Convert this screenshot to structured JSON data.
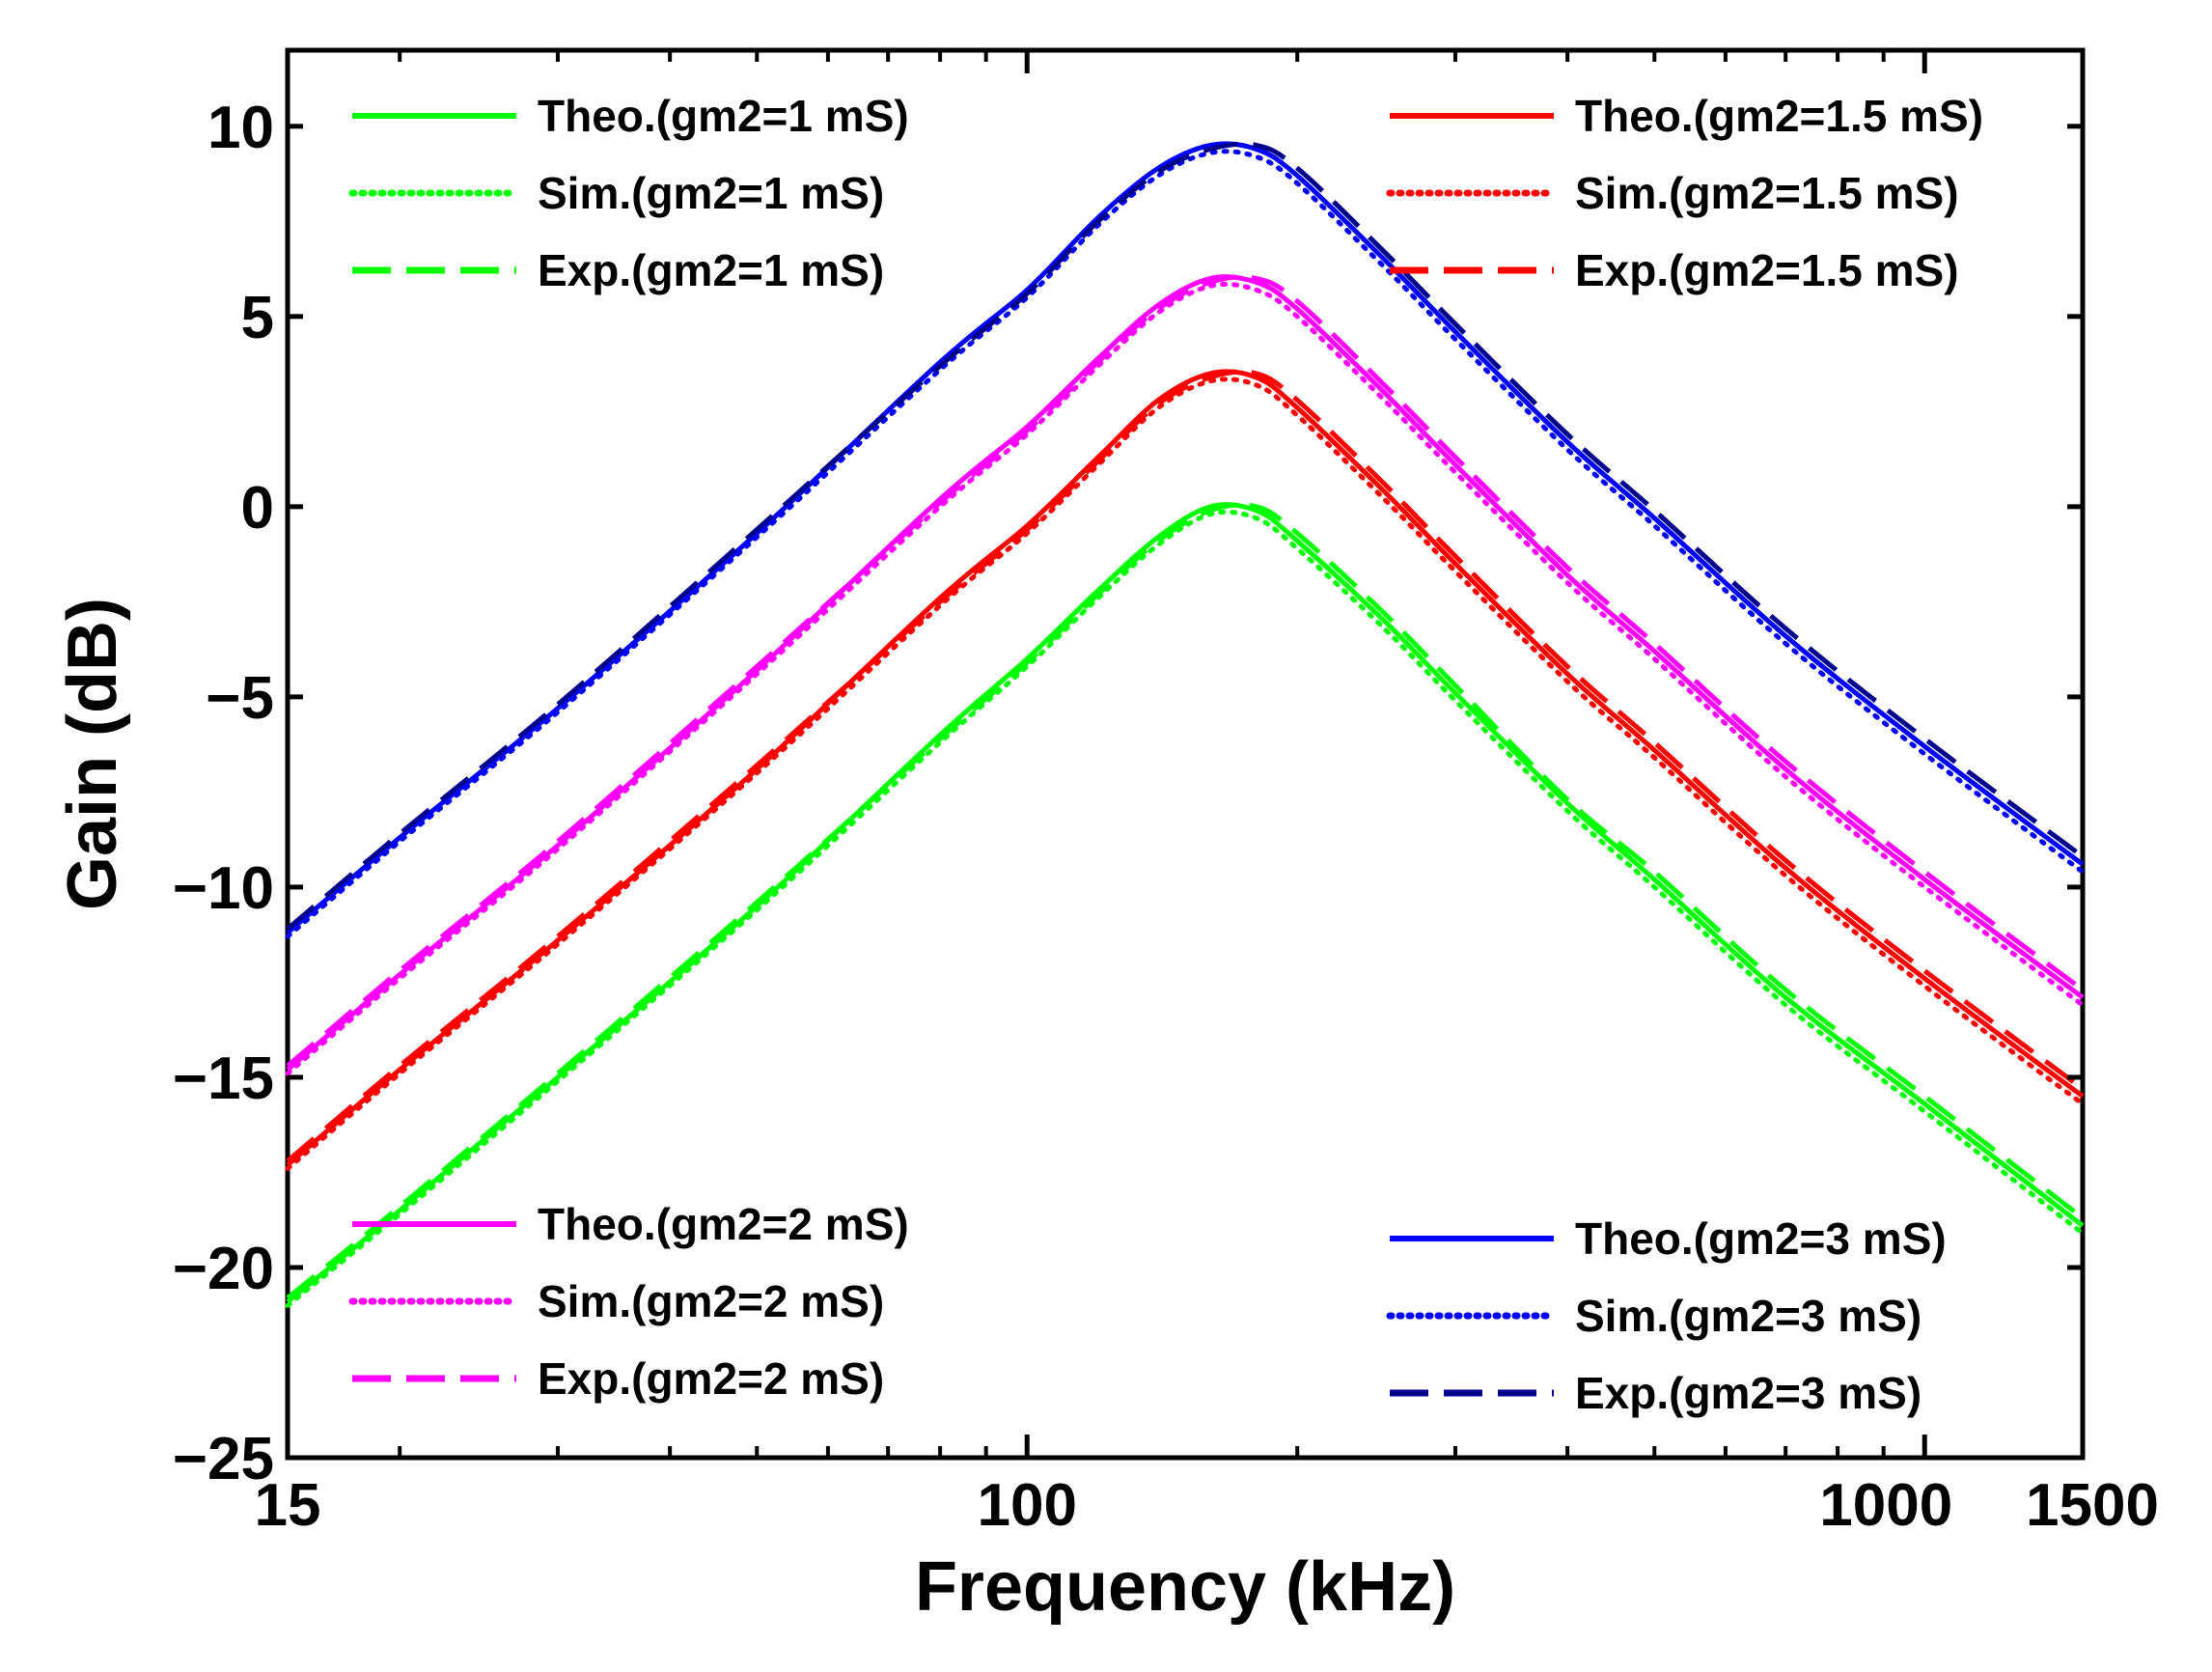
{
  "chart_data": {
    "type": "line",
    "title": "",
    "xlabel": "Frequency (kHz)",
    "ylabel": "Gain (dB)",
    "xscale": "log",
    "xlim": [
      15,
      1500
    ],
    "ylim": [
      -25,
      12
    ],
    "grid": false,
    "x_ticks": [
      15,
      100,
      1000,
      1500
    ],
    "x_tick_labels": [
      "15",
      "100",
      "1000",
      "1500"
    ],
    "y_ticks": [
      -25,
      -20,
      -15,
      -10,
      -5,
      0,
      5,
      10
    ],
    "y_tick_labels": [
      "−25",
      "−20",
      "−15",
      "−10",
      "−5",
      "0",
      "5",
      "10"
    ],
    "x": [
      15,
      20,
      30,
      50,
      80,
      100,
      120,
      140,
      160,
      180,
      200,
      250,
      300,
      400,
      500,
      700,
      1000,
      1500
    ],
    "series": [
      {
        "name": "Theo.(gm2=1 mS)",
        "legend_group": "top-left",
        "color": "#00ff00",
        "style": "solid",
        "values": [
          -20.9,
          -18.5,
          -15.0,
          -10.5,
          -6.0,
          -4.0,
          -2.2,
          -0.8,
          0.0,
          -0.1,
          -0.9,
          -3.0,
          -4.9,
          -7.8,
          -9.8,
          -12.9,
          -15.7,
          -18.9
        ]
      },
      {
        "name": "Sim.(gm2=1 mS)",
        "legend_group": "top-left",
        "color": "#00ff00",
        "style": "dotted",
        "values": [
          -21.0,
          -18.6,
          -15.1,
          -10.6,
          -6.2,
          -4.2,
          -2.4,
          -1.0,
          -0.2,
          -0.3,
          -1.1,
          -3.2,
          -5.1,
          -8.0,
          -10.0,
          -13.1,
          -15.9,
          -19.1
        ]
      },
      {
        "name": "Exp.(gm2=1 mS)",
        "legend_group": "top-left",
        "color": "#00ff00",
        "style": "dashed",
        "values": [
          -20.8,
          -18.4,
          -14.9,
          -10.4,
          -6.1,
          -4.1,
          -2.3,
          -0.9,
          -0.1,
          0.0,
          -0.7,
          -2.8,
          -4.7,
          -7.7,
          -9.6,
          -12.7,
          -15.5,
          -18.7
        ]
      },
      {
        "name": "Theo.(gm2=1.5 mS)",
        "legend_group": "top-right",
        "color": "#ff0000",
        "style": "solid",
        "values": [
          -17.3,
          -14.8,
          -11.4,
          -6.9,
          -2.4,
          -0.5,
          1.3,
          2.8,
          3.5,
          3.4,
          2.6,
          0.4,
          -1.5,
          -4.4,
          -6.4,
          -9.5,
          -12.4,
          -15.5
        ]
      },
      {
        "name": "Sim.(gm2=1.5 mS)",
        "legend_group": "top-right",
        "color": "#ff0000",
        "style": "dotted",
        "values": [
          -17.4,
          -14.9,
          -11.5,
          -7.0,
          -2.6,
          -0.7,
          1.1,
          2.6,
          3.3,
          3.2,
          2.4,
          0.2,
          -1.7,
          -4.6,
          -6.6,
          -9.7,
          -12.6,
          -15.7
        ]
      },
      {
        "name": "Exp.(gm2=1.5 mS)",
        "legend_group": "top-right",
        "color": "#ff0000",
        "style": "dashed",
        "values": [
          -17.2,
          -14.7,
          -11.3,
          -6.8,
          -2.5,
          -0.6,
          1.2,
          2.7,
          3.4,
          3.5,
          2.8,
          0.6,
          -1.3,
          -4.2,
          -6.2,
          -9.3,
          -12.2,
          -15.3
        ]
      },
      {
        "name": "Theo.(gm2=2 mS)",
        "legend_group": "bottom-left",
        "color": "#ff00ff",
        "style": "solid",
        "values": [
          -14.8,
          -12.3,
          -8.9,
          -4.3,
          0.2,
          2.1,
          3.9,
          5.3,
          6.0,
          5.9,
          5.2,
          3.0,
          1.1,
          -1.8,
          -3.8,
          -6.9,
          -9.8,
          -12.9
        ]
      },
      {
        "name": "Sim.(gm2=2 mS)",
        "legend_group": "bottom-left",
        "color": "#ff00ff",
        "style": "dotted",
        "values": [
          -14.9,
          -12.4,
          -9.0,
          -4.4,
          0.0,
          1.9,
          3.7,
          5.1,
          5.8,
          5.7,
          5.0,
          2.8,
          0.9,
          -2.0,
          -4.0,
          -7.1,
          -10.0,
          -13.1
        ]
      },
      {
        "name": "Exp.(gm2=2 mS)",
        "legend_group": "bottom-left",
        "color": "#ff00ff",
        "style": "dashed",
        "values": [
          -14.7,
          -12.2,
          -8.8,
          -4.2,
          0.1,
          2.0,
          3.8,
          5.2,
          5.9,
          6.0,
          5.4,
          3.2,
          1.3,
          -1.6,
          -3.6,
          -6.7,
          -9.6,
          -12.7
        ]
      },
      {
        "name": "Theo.(gm2=3 mS)",
        "legend_group": "bottom-right",
        "color": "#0000ff",
        "style": "solid",
        "values": [
          -11.2,
          -8.7,
          -5.3,
          -0.7,
          3.8,
          5.7,
          7.6,
          8.9,
          9.5,
          9.4,
          8.7,
          6.5,
          4.6,
          1.7,
          -0.3,
          -3.4,
          -6.3,
          -9.4
        ]
      },
      {
        "name": "Sim.(gm2=3 mS)",
        "legend_group": "bottom-right",
        "color": "#0000ff",
        "style": "dotted",
        "values": [
          -11.3,
          -8.8,
          -5.4,
          -0.8,
          3.6,
          5.5,
          7.4,
          8.7,
          9.3,
          9.2,
          8.5,
          6.3,
          4.4,
          1.5,
          -0.5,
          -3.6,
          -6.5,
          -9.6
        ]
      },
      {
        "name": "Exp.(gm2=3 mS)",
        "legend_group": "bottom-right",
        "color": "#00008b",
        "style": "dashed",
        "values": [
          -11.1,
          -8.6,
          -5.2,
          -0.6,
          3.7,
          5.6,
          7.5,
          8.8,
          9.4,
          9.5,
          8.9,
          6.7,
          4.8,
          1.9,
          -0.1,
          -3.2,
          -6.1,
          -9.2
        ]
      }
    ],
    "legends": [
      {
        "position": "top-left",
        "entries": [
          "Theo.(gm2=1 mS)",
          "Sim.(gm2=1 mS)",
          "Exp.(gm2=1 mS)"
        ]
      },
      {
        "position": "top-right",
        "entries": [
          "Theo.(gm2=1.5 mS)",
          "Sim.(gm2=1.5 mS)",
          "Exp.(gm2=1.5 mS)"
        ]
      },
      {
        "position": "bottom-left",
        "entries": [
          "Theo.(gm2=2 mS)",
          "Sim.(gm2=2 mS)",
          "Exp.(gm2=2 mS)"
        ]
      },
      {
        "position": "bottom-right",
        "entries": [
          "Theo.(gm2=3 mS)",
          "Sim.(gm2=3 mS)",
          "Exp.(gm2=3 mS)"
        ]
      }
    ]
  }
}
